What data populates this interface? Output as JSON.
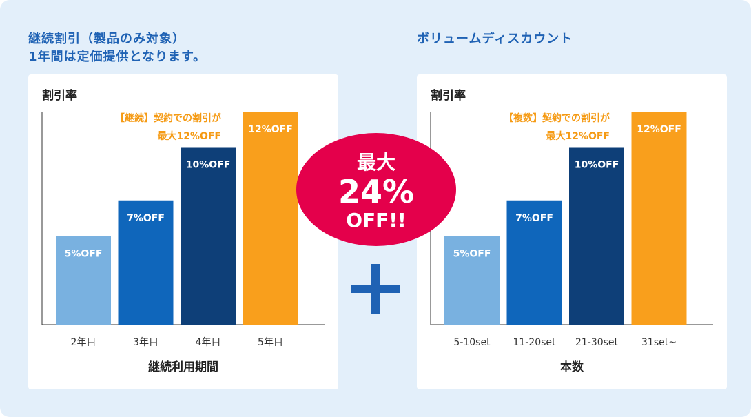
{
  "left": {
    "title_line1": "継続割引（製品のみ対象）",
    "title_line2": "1年間は定価提供となります。"
  },
  "right": {
    "title": "ボリュームディスカウント"
  },
  "badge": {
    "line1": "最大",
    "line2": "24%",
    "line3": "OFF!!"
  },
  "plus_icon": "plus-icon",
  "colors": {
    "background": "#e3effa",
    "title_blue": "#1f62b4",
    "bar_light": "#79b1e0",
    "bar_mid": "#0f66bb",
    "bar_dark": "#0e3f78",
    "bar_orange": "#f99f1c",
    "annotation_orange": "#f59a13",
    "badge_red": "#e4004b"
  },
  "chart_data": [
    {
      "type": "bar",
      "title": "",
      "ylabel": "割引率",
      "xlabel": "継続利用期間",
      "categories": [
        "2年目",
        "3年目",
        "4年目",
        "5年目"
      ],
      "values": [
        5,
        7,
        10,
        12
      ],
      "unit": "%",
      "data_labels": [
        "5%OFF",
        "7%OFF",
        "10%OFF",
        "12%OFF"
      ],
      "bar_colors": [
        "#79b1e0",
        "#0f66bb",
        "#0e3f78",
        "#f99f1c"
      ],
      "ylim": [
        0,
        12
      ],
      "annotation_line1": "【継続】契約での割引が",
      "annotation_line2": "最大12%OFF"
    },
    {
      "type": "bar",
      "title": "",
      "ylabel": "割引率",
      "xlabel": "本数",
      "categories": [
        "5-10set",
        "11-20set",
        "21-30set",
        "31set~"
      ],
      "values": [
        5,
        7,
        10,
        12
      ],
      "unit": "%",
      "data_labels": [
        "5%OFF",
        "7%OFF",
        "10%OFF",
        "12%OFF"
      ],
      "bar_colors": [
        "#79b1e0",
        "#0f66bb",
        "#0e3f78",
        "#f99f1c"
      ],
      "ylim": [
        0,
        12
      ],
      "annotation_line1": "【複数】契約での割引が",
      "annotation_line2": "最大12%OFF"
    }
  ]
}
